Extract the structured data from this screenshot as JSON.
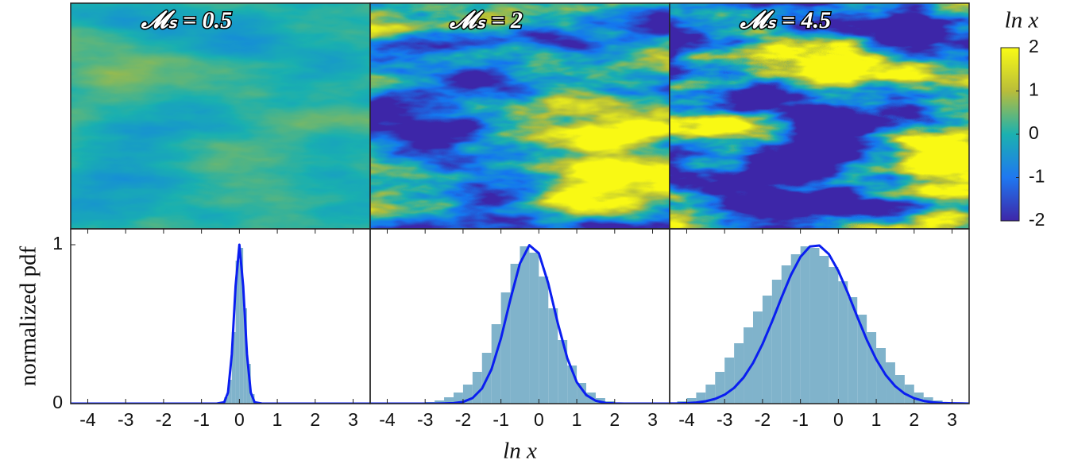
{
  "chart_data": [
    {
      "type": "image",
      "title": "𝓜ₛ = 0.5",
      "contrast": 0.5,
      "center": 0.5
    },
    {
      "type": "image",
      "title": "𝓜ₛ = 2",
      "contrast": 2.6,
      "center": 0.42
    },
    {
      "type": "image",
      "title": "𝓜ₛ = 4.5",
      "contrast": 3.6,
      "center": 0.32
    },
    {
      "type": "colorbar",
      "title": "ln x",
      "ylim": [
        -2,
        2
      ],
      "yticks": [
        -2,
        -1,
        0,
        1,
        2
      ]
    },
    {
      "type": "histogram",
      "ylabel": "normalized pdf",
      "color": "#80b3cb",
      "bins": [
        -0.5,
        -0.4,
        -0.3,
        -0.2,
        -0.1,
        0,
        0.1,
        0.2,
        0.3,
        0.4,
        0.5
      ],
      "values": [
        0.01,
        0.04,
        0.15,
        0.45,
        0.9,
        0.98,
        0.6,
        0.25,
        0.06,
        0.01
      ],
      "line": {
        "color": "#0a1ef0",
        "x": [
          -4.5,
          -1,
          -0.6,
          -0.4,
          -0.3,
          -0.2,
          -0.1,
          0,
          0.1,
          0.2,
          0.3,
          0.4,
          0.6,
          1,
          3.5
        ],
        "values": [
          0,
          0,
          0,
          0.009,
          0.07,
          0.31,
          0.74,
          1,
          0.74,
          0.31,
          0.07,
          0.009,
          0,
          0,
          0
        ]
      },
      "xlim": [
        -4.45,
        3.45
      ],
      "xticks": [
        -4,
        -3,
        -2,
        -1,
        0,
        1,
        2,
        3
      ],
      "ylim": [
        0,
        1.1
      ],
      "yticks": [
        0,
        1
      ]
    },
    {
      "type": "histogram",
      "xlabel": "ln x",
      "color": "#80b3cb",
      "bins": [
        -4.5,
        -4.25,
        -4,
        -3.75,
        -3.5,
        -3.25,
        -3,
        -2.75,
        -2.5,
        -2.25,
        -2,
        -1.75,
        -1.5,
        -1.25,
        -1,
        -0.75,
        -0.5,
        -0.25,
        0,
        0.25,
        0.5,
        0.75,
        1,
        1.25,
        1.5,
        1.75,
        2,
        2.25,
        2.5,
        2.75,
        3,
        3.25,
        3.5
      ],
      "values": [
        0,
        0,
        0,
        0,
        0,
        0.005,
        0.01,
        0.02,
        0.04,
        0.07,
        0.12,
        0.2,
        0.32,
        0.5,
        0.7,
        0.88,
        0.99,
        0.95,
        0.8,
        0.6,
        0.4,
        0.24,
        0.13,
        0.07,
        0.035,
        0.015,
        0.007,
        0.003,
        0.001,
        0,
        0,
        0
      ],
      "line": {
        "color": "#0a1ef0",
        "x": [
          -4.5,
          -4.25,
          -4,
          -3.75,
          -3.5,
          -3.25,
          -3,
          -2.75,
          -2.5,
          -2.25,
          -2,
          -1.75,
          -1.5,
          -1.25,
          -1,
          -0.75,
          -0.5,
          -0.25,
          0,
          0.25,
          0.5,
          0.75,
          1,
          1.25,
          1.5,
          1.75,
          2,
          2.25,
          2.5,
          2.75,
          3,
          3.25,
          3.5
        ],
        "values": [
          0,
          0,
          0,
          0,
          0,
          0,
          0,
          0,
          0.001,
          0.003,
          0.011,
          0.035,
          0.095,
          0.216,
          0.411,
          0.657,
          0.882,
          0.997,
          0.946,
          0.755,
          0.506,
          0.286,
          0.135,
          0.054,
          0.018,
          0.005,
          0.001,
          0,
          0,
          0,
          0,
          0,
          0
        ]
      },
      "xlim": [
        -4.45,
        3.45
      ],
      "xticks": [
        -4,
        -3,
        -2,
        -1,
        0,
        1,
        2,
        3
      ],
      "ylim": [
        0,
        1.1
      ]
    },
    {
      "type": "histogram",
      "color": "#80b3cb",
      "bins": [
        -4.5,
        -4.25,
        -4,
        -3.75,
        -3.5,
        -3.25,
        -3,
        -2.75,
        -2.5,
        -2.25,
        -2,
        -1.75,
        -1.5,
        -1.25,
        -1,
        -0.75,
        -0.5,
        -0.25,
        0,
        0.25,
        0.5,
        0.75,
        1,
        1.25,
        1.5,
        1.75,
        2,
        2.25,
        2.5,
        2.75,
        3,
        3.25,
        3.5
      ],
      "values": [
        0.005,
        0.015,
        0.035,
        0.07,
        0.12,
        0.2,
        0.29,
        0.38,
        0.48,
        0.58,
        0.68,
        0.78,
        0.87,
        0.94,
        0.99,
        0.98,
        0.93,
        0.86,
        0.77,
        0.67,
        0.56,
        0.45,
        0.35,
        0.26,
        0.18,
        0.12,
        0.07,
        0.04,
        0.02,
        0.01,
        0.004,
        0.001
      ],
      "line": {
        "color": "#0a1ef0",
        "x": [
          -4.5,
          -4.25,
          -4,
          -3.75,
          -3.5,
          -3.25,
          -3,
          -2.75,
          -2.5,
          -2.25,
          -2,
          -1.75,
          -1.5,
          -1.25,
          -1,
          -0.75,
          -0.5,
          -0.25,
          0,
          0.25,
          0.5,
          0.75,
          1,
          1.25,
          1.5,
          1.75,
          2,
          2.25,
          2.5,
          2.75,
          3,
          3.25,
          3.5
        ],
        "values": [
          0.0005,
          0.001,
          0.003,
          0.007,
          0.015,
          0.03,
          0.056,
          0.099,
          0.164,
          0.256,
          0.375,
          0.516,
          0.667,
          0.81,
          0.923,
          0.989,
          0.995,
          0.941,
          0.835,
          0.697,
          0.546,
          0.402,
          0.278,
          0.18,
          0.11,
          0.063,
          0.034,
          0.017,
          0.008,
          0.004,
          0.002,
          0.001,
          0
        ]
      },
      "xlim": [
        -4.45,
        3.45
      ],
      "xticks": [
        -4,
        -3,
        -2,
        -1,
        0,
        1,
        2,
        3
      ],
      "ylim": [
        0,
        1.1
      ]
    }
  ]
}
